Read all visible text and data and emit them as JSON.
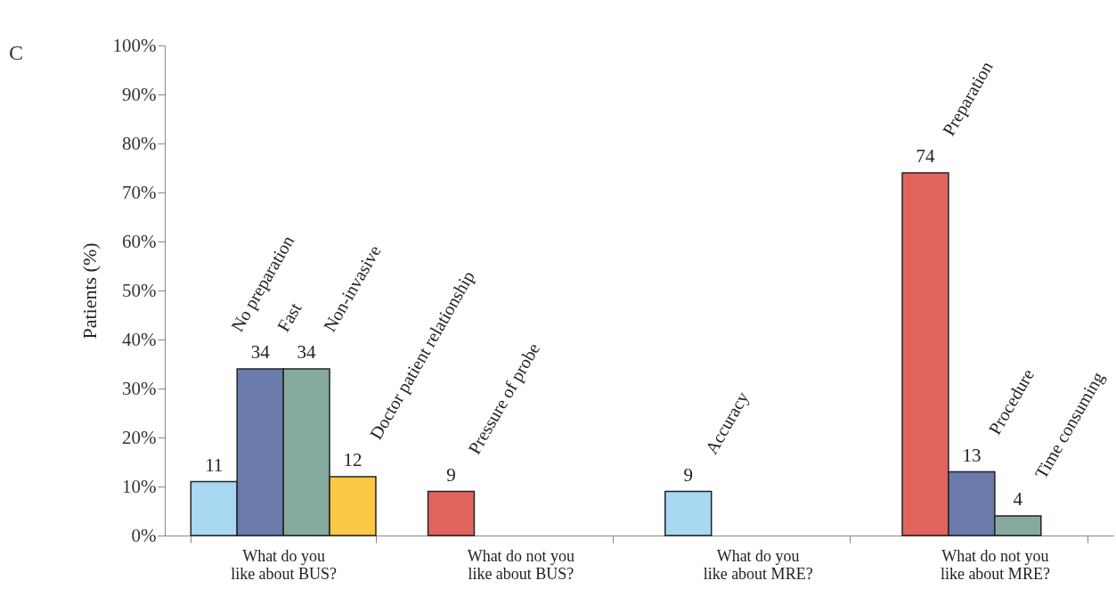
{
  "chart_data": {
    "type": "bar",
    "title": "C",
    "ylabel": "Patients (%)",
    "categories": [
      "What do you like about BUS?",
      "What do not you like about BUS?",
      "What do you like about MRE?",
      "What do not you like about MRE?"
    ],
    "series": [
      {
        "colors": [
          "#a9d8f2",
          "#e0645d",
          "#a9d8f2",
          "#e0645d"
        ],
        "values": [
          11,
          9,
          9,
          74
        ]
      },
      {
        "colors": [
          "#6a7bab",
          null,
          null,
          "#6a7bab"
        ],
        "values": [
          34,
          null,
          null,
          13
        ]
      },
      {
        "colors": [
          "#86ab9e",
          null,
          null,
          "#86ab9e"
        ],
        "values": [
          34,
          null,
          null,
          4
        ]
      },
      {
        "colors": [
          "#fdc843",
          null,
          null,
          null
        ],
        "values": [
          12,
          null,
          null,
          null
        ]
      }
    ],
    "ylim": [
      0,
      100
    ],
    "yticks": [
      {
        "value": 0,
        "label": "0%"
      },
      {
        "value": 10,
        "label": "10%"
      },
      {
        "value": 20,
        "label": "20%"
      },
      {
        "value": 30,
        "label": "30%"
      },
      {
        "value": 40,
        "label": "40%"
      },
      {
        "value": 50,
        "label": "50%"
      },
      {
        "value": 60,
        "label": "60%"
      },
      {
        "value": 70,
        "label": "70%"
      },
      {
        "value": 80,
        "label": "80%"
      },
      {
        "value": 90,
        "label": "90%"
      },
      {
        "value": 100,
        "label": "100%"
      }
    ],
    "data_labels": true,
    "grid": false,
    "annotations": [
      "No preparation",
      "Fast",
      "Non-invasive",
      "Doctor patient relationship",
      "Pressure of probe",
      "Accuracy",
      "Preparation",
      "Procedure",
      "Time consuming"
    ]
  }
}
